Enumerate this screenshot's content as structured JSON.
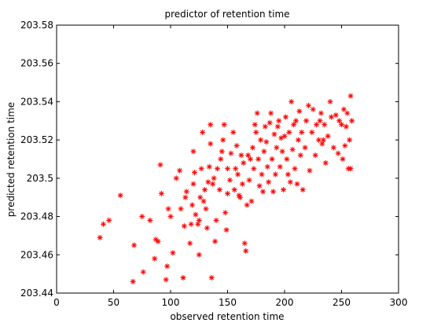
{
  "chart_data": {
    "type": "scatter",
    "title": "predictor of retention time",
    "xlabel": "observed retention time",
    "ylabel": "predicted retention time",
    "xlim": [
      0,
      300
    ],
    "ylim": [
      203.44,
      203.58
    ],
    "xticks": [
      0,
      50,
      100,
      150,
      200,
      250,
      300
    ],
    "yticks": [
      203.44,
      203.46,
      203.48,
      203.5,
      203.52,
      203.54,
      203.56,
      203.58
    ],
    "xtick_labels": [
      "0",
      "50",
      "100",
      "150",
      "200",
      "250",
      "300"
    ],
    "ytick_labels": [
      "203.44",
      "203.46",
      "203.48",
      "203.5",
      "203.52",
      "203.54",
      "203.56",
      "203.58"
    ],
    "grid": false,
    "marker": "asterisk",
    "marker_color": "#ff0000",
    "series": [
      {
        "points": [
          [
            38,
            203.469
          ],
          [
            41,
            203.476
          ],
          [
            46,
            203.478
          ],
          [
            56,
            203.491
          ],
          [
            67,
            203.446
          ],
          [
            68,
            203.465
          ],
          [
            75,
            203.48
          ],
          [
            76,
            203.451
          ],
          [
            82,
            203.478
          ],
          [
            86,
            203.458
          ],
          [
            87,
            203.468
          ],
          [
            89,
            203.467
          ],
          [
            91,
            203.507
          ],
          [
            92,
            203.492
          ],
          [
            96,
            203.447
          ],
          [
            97,
            203.454
          ],
          [
            98,
            203.484
          ],
          [
            100,
            203.48
          ],
          [
            102,
            203.461
          ],
          [
            105,
            203.5
          ],
          [
            108,
            203.504
          ],
          [
            109,
            203.484
          ],
          [
            111,
            203.448
          ],
          [
            112,
            203.475
          ],
          [
            113,
            203.49
          ],
          [
            114,
            203.493
          ],
          [
            117,
            203.466
          ],
          [
            118,
            203.476
          ],
          [
            119,
            203.486
          ],
          [
            120,
            203.497
          ],
          [
            120,
            203.514
          ],
          [
            121,
            203.503
          ],
          [
            122,
            203.481
          ],
          [
            124,
            203.476
          ],
          [
            125,
            203.46
          ],
          [
            125,
            203.478
          ],
          [
            126,
            203.49
          ],
          [
            127,
            203.505
          ],
          [
            128,
            203.524
          ],
          [
            129,
            203.488
          ],
          [
            130,
            203.494
          ],
          [
            131,
            203.484
          ],
          [
            132,
            203.474
          ],
          [
            133,
            203.498
          ],
          [
            134,
            203.506
          ],
          [
            135,
            203.528
          ],
          [
            135,
            203.518
          ],
          [
            136,
            203.448
          ],
          [
            137,
            203.497
          ],
          [
            138,
            203.5
          ],
          [
            139,
            203.467
          ],
          [
            140,
            203.478
          ],
          [
            141,
            203.505
          ],
          [
            143,
            203.494
          ],
          [
            144,
            203.51
          ],
          [
            145,
            203.514
          ],
          [
            146,
            203.52
          ],
          [
            147,
            203.528
          ],
          [
            148,
            203.482
          ],
          [
            149,
            203.473
          ],
          [
            150,
            203.492
          ],
          [
            150,
            203.505
          ],
          [
            152,
            203.499
          ],
          [
            153,
            203.513
          ],
          [
            155,
            203.524
          ],
          [
            156,
            203.494
          ],
          [
            157,
            203.505
          ],
          [
            158,
            203.517
          ],
          [
            159,
            203.502
          ],
          [
            160,
            203.491
          ],
          [
            161,
            203.49
          ],
          [
            162,
            203.512
          ],
          [
            163,
            203.497
          ],
          [
            164,
            203.508
          ],
          [
            165,
            203.466
          ],
          [
            166,
            203.462
          ],
          [
            167,
            203.486
          ],
          [
            168,
            203.512
          ],
          [
            169,
            203.499
          ],
          [
            170,
            203.51
          ],
          [
            171,
            203.488
          ],
          [
            172,
            203.516
          ],
          [
            173,
            203.505
          ],
          [
            174,
            203.528
          ],
          [
            175,
            203.524
          ],
          [
            176,
            203.534
          ],
          [
            177,
            203.51
          ],
          [
            178,
            203.496
          ],
          [
            179,
            203.52
          ],
          [
            180,
            203.502
          ],
          [
            181,
            203.493
          ],
          [
            182,
            203.514
          ],
          [
            183,
            203.527
          ],
          [
            184,
            203.519
          ],
          [
            185,
            203.506
          ],
          [
            186,
            203.498
          ],
          [
            187,
            203.529
          ],
          [
            188,
            203.534
          ],
          [
            189,
            203.51
          ],
          [
            190,
            203.493
          ],
          [
            191,
            203.523
          ],
          [
            192,
            203.502
          ],
          [
            193,
            203.516
          ],
          [
            194,
            203.527
          ],
          [
            195,
            203.53
          ],
          [
            196,
            203.506
          ],
          [
            197,
            203.521
          ],
          [
            198,
            203.514
          ],
          [
            199,
            203.494
          ],
          [
            200,
            203.522
          ],
          [
            201,
            203.532
          ],
          [
            202,
            203.51
          ],
          [
            203,
            203.502
          ],
          [
            204,
            203.524
          ],
          [
            205,
            203.498
          ],
          [
            206,
            203.54
          ],
          [
            207,
            203.515
          ],
          [
            208,
            203.528
          ],
          [
            209,
            203.505
          ],
          [
            210,
            203.53
          ],
          [
            211,
            203.497
          ],
          [
            212,
            203.52
          ],
          [
            213,
            203.535
          ],
          [
            214,
            203.512
          ],
          [
            215,
            203.524
          ],
          [
            216,
            203.494
          ],
          [
            218,
            203.516
          ],
          [
            219,
            203.53
          ],
          [
            221,
            203.538
          ],
          [
            222,
            203.504
          ],
          [
            224,
            203.524
          ],
          [
            225,
            203.536
          ],
          [
            227,
            203.512
          ],
          [
            228,
            203.528
          ],
          [
            230,
            203.52
          ],
          [
            231,
            203.53
          ],
          [
            232,
            203.534
          ],
          [
            233,
            203.518
          ],
          [
            234,
            203.52
          ],
          [
            235,
            203.528
          ],
          [
            236,
            203.508
          ],
          [
            238,
            203.522
          ],
          [
            240,
            203.54
          ],
          [
            241,
            203.532
          ],
          [
            243,
            203.516
          ],
          [
            245,
            203.533
          ],
          [
            247,
            203.513
          ],
          [
            248,
            203.53
          ],
          [
            250,
            203.528
          ],
          [
            251,
            203.51
          ],
          [
            252,
            203.536
          ],
          [
            253,
            203.517
          ],
          [
            254,
            203.527
          ],
          [
            255,
            203.534
          ],
          [
            256,
            203.505
          ],
          [
            257,
            203.52
          ],
          [
            258,
            203.543
          ],
          [
            258,
            203.505
          ],
          [
            259,
            203.53
          ]
        ]
      }
    ]
  }
}
